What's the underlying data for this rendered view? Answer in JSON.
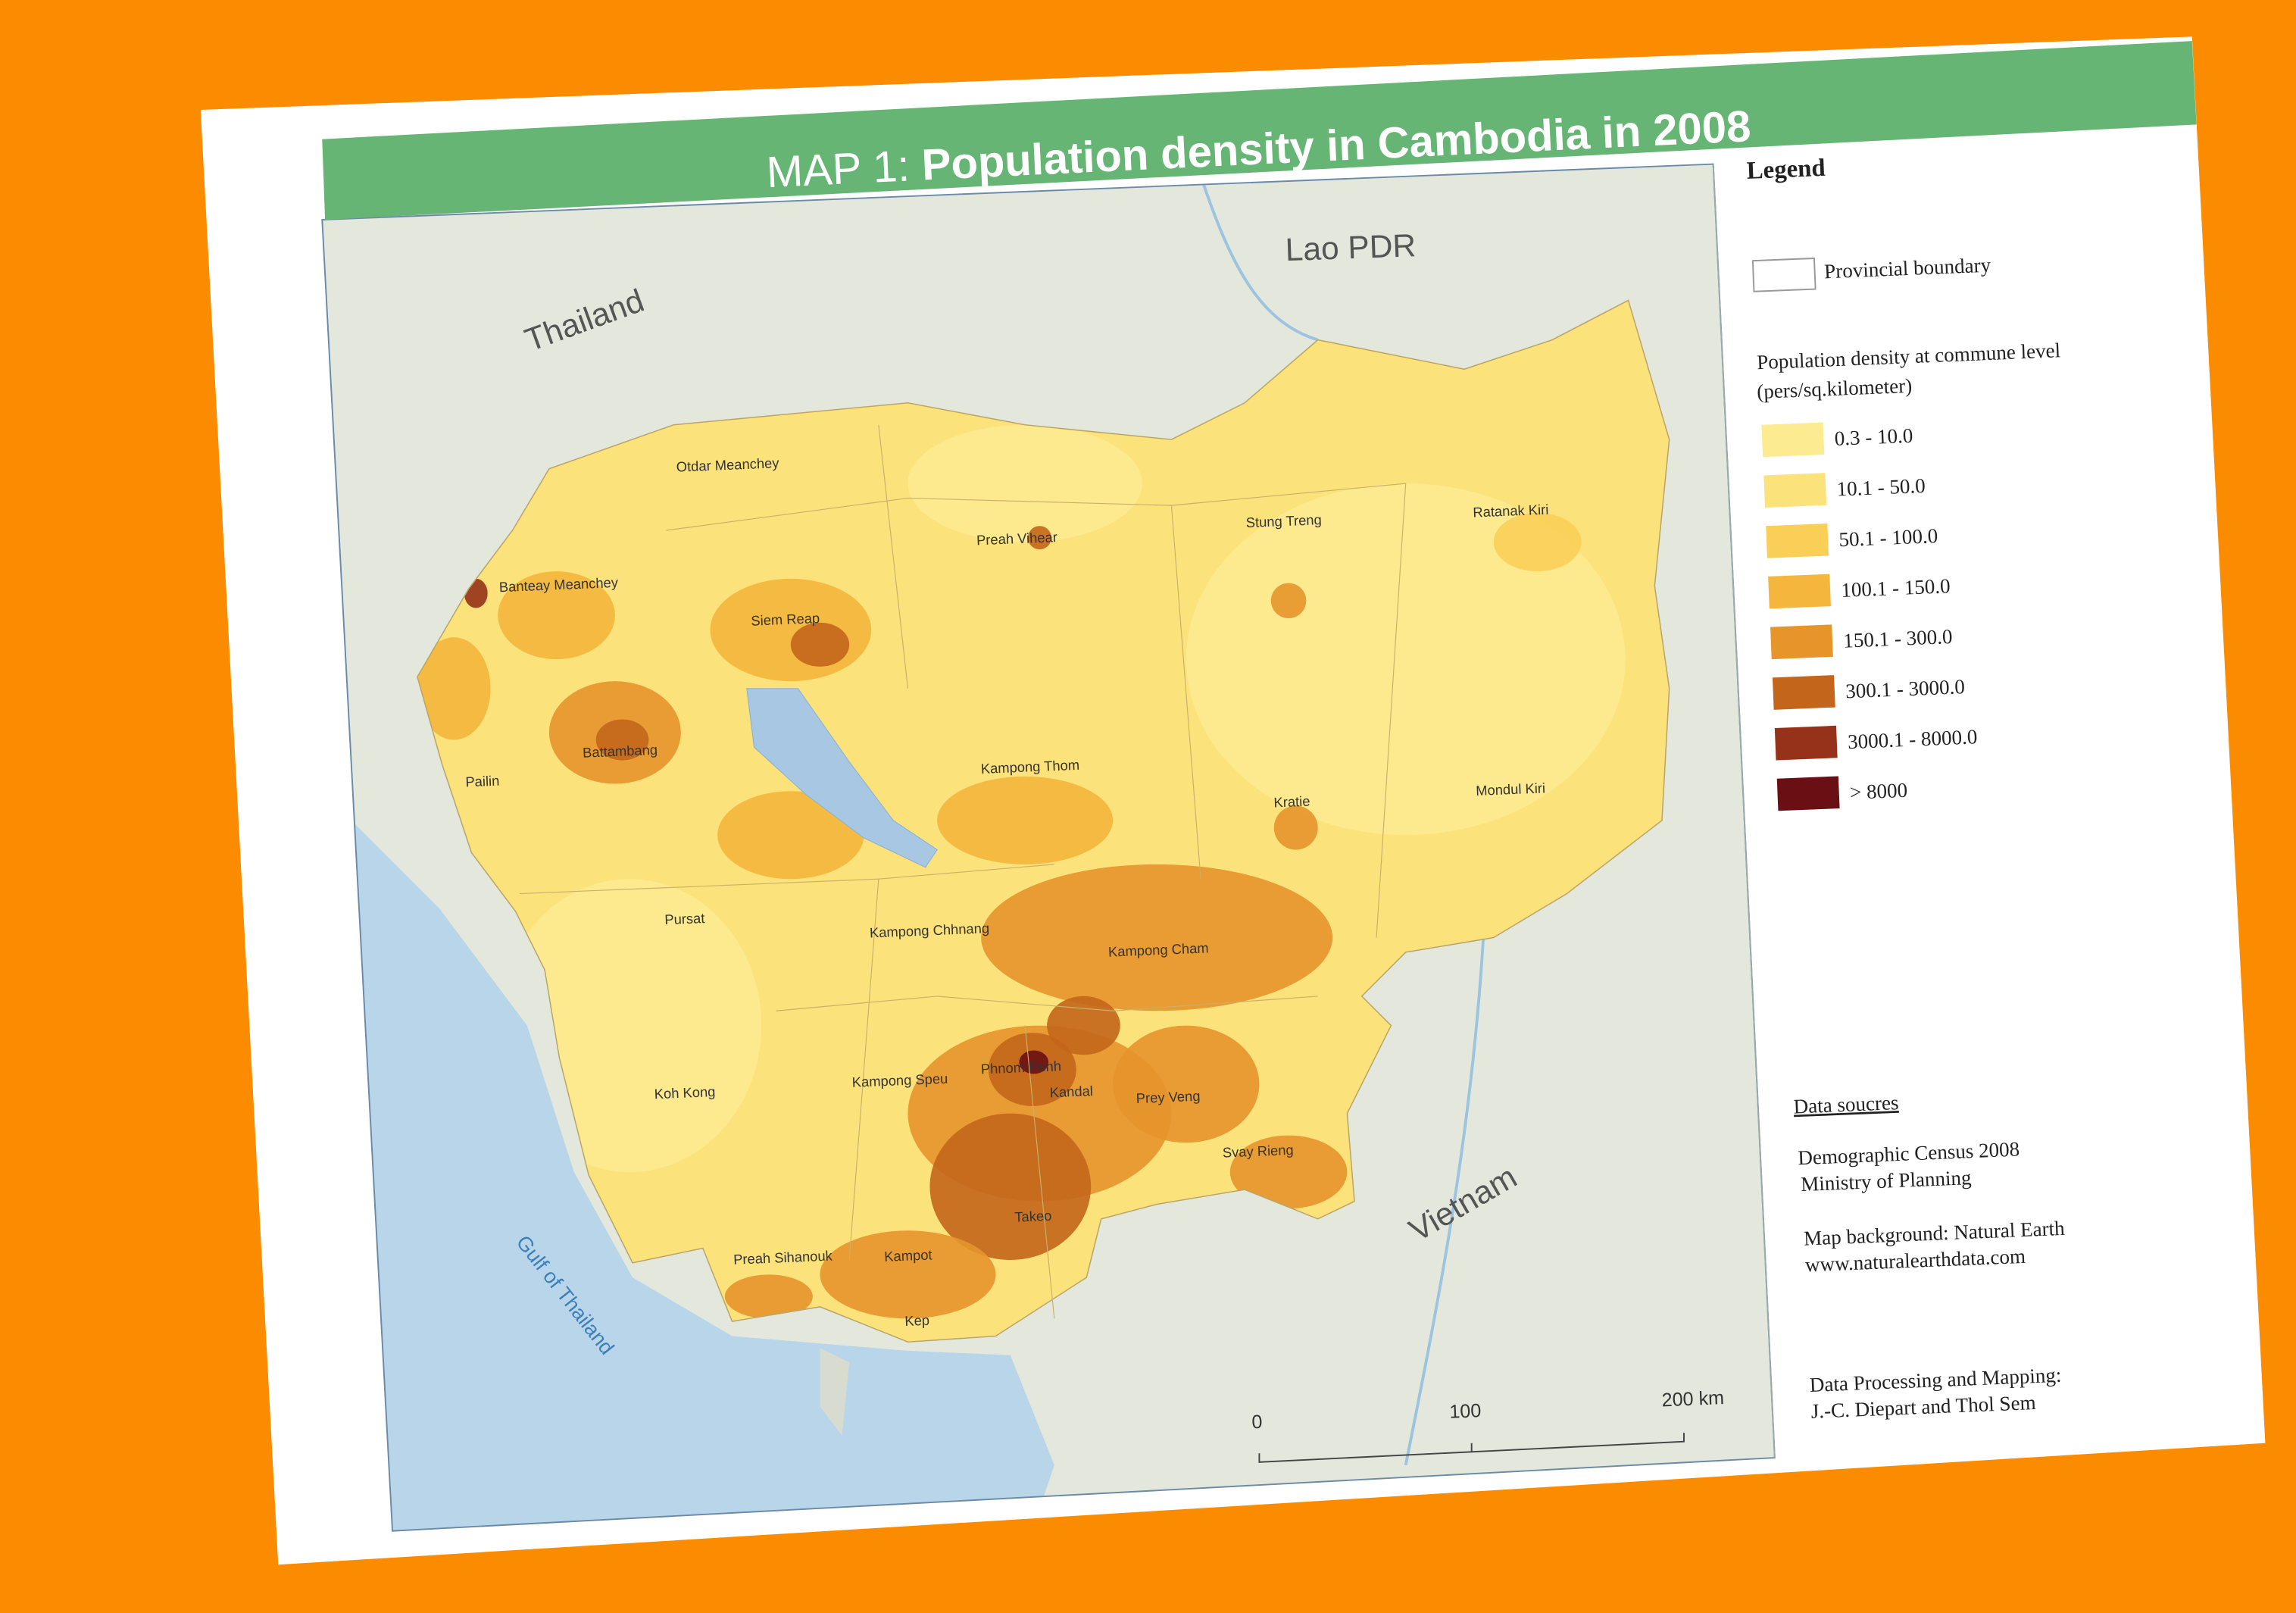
{
  "title": {
    "prefix": "MAP 1:",
    "main": "Population density in Cambodia in 2008"
  },
  "countries": [
    "Thailand",
    "Lao PDR",
    "Vietnam"
  ],
  "sea": "Gulf of Thailand",
  "provinces": [
    "Otdar Meanchey",
    "Preah Vihear",
    "Stung Treng",
    "Ratanak Kiri",
    "Banteay Meanchey",
    "Siem Reap",
    "Battambang",
    "Pailin",
    "Kampong Thom",
    "Kratie",
    "Mondul Kiri",
    "Pursat",
    "Kampong Chhnang",
    "Kampong Cham",
    "Koh Kong",
    "Kampong Speu",
    "Phnom Penh",
    "Kandal",
    "Prey Veng",
    "Svay Rieng",
    "Takeo",
    "Preah Sihanouk",
    "Kampot",
    "Kep"
  ],
  "scale_bar": [
    "0",
    "100",
    "200 km"
  ],
  "legend": {
    "title": "Legend",
    "boundary": "Provincial boundary",
    "density_title": "Population density at commune level",
    "density_unit": "(pers/sq.kilometer)",
    "classes": [
      {
        "label": "0.3 - 10.0",
        "color": "#fdeb91"
      },
      {
        "label": "10.1 - 50.0",
        "color": "#fce27a"
      },
      {
        "label": "50.1 - 100.0",
        "color": "#f9cf58"
      },
      {
        "label": "100.1 - 150.0",
        "color": "#f4b63c"
      },
      {
        "label": "150.1 - 300.0",
        "color": "#e6952b"
      },
      {
        "label": "300.1 - 3000.0",
        "color": "#c3661b"
      },
      {
        "label": "3000.1 - 8000.0",
        "color": "#96321a"
      },
      {
        "label": "> 8000",
        "color": "#6a0f14"
      }
    ]
  },
  "sources": {
    "heading": "Data soucres",
    "lines": [
      "Demographic Census 2008",
      "Ministry of Planning",
      "Map background: Natural Earth",
      "www.naturalearthdata.com",
      "Data Processing and Mapping:",
      "J.-C. Diepart and Thol Sem"
    ]
  }
}
